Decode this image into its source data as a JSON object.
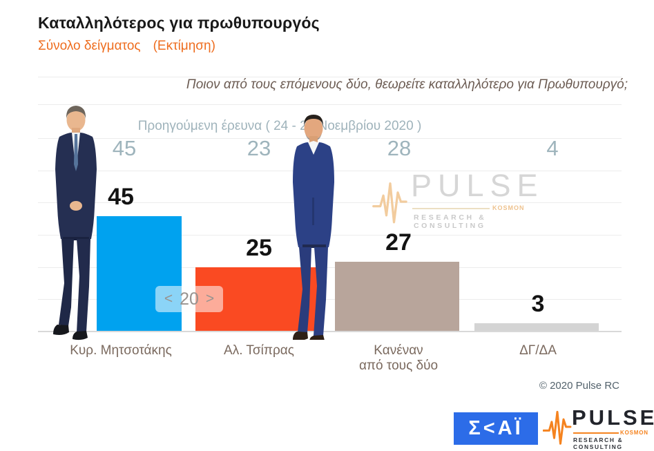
{
  "header": {
    "title": "Καταλληλότερος για πρωθυπουργός",
    "subtitle_sample": "Σύνολο δείγματος",
    "subtitle_estimate": "(Εκτίμηση)"
  },
  "question": "Ποιον από τους επόμενους δύο, θεωρείτε καταλληλότερο για Πρωθυπουργό;",
  "previous_survey_label": "Προηγούμενη έρευνα ( 24 - 26 Νοεμβρίου  2020 )",
  "slide_nav": {
    "prev": "<",
    "page": "20",
    "next": ">"
  },
  "watermark": {
    "brand": "PULSE",
    "badge": "KOSMON",
    "tagline": "RESEARCH & CONSULTING"
  },
  "footer": {
    "copyright": "© 2020 Pulse RC"
  },
  "logos": {
    "skai": "Σ<ΑΪ",
    "pulse_brand": "PULSE",
    "pulse_badge": "KOSMON",
    "pulse_tagline": "RESEARCH & CONSULTING"
  },
  "chart_data": {
    "type": "bar",
    "title": "Καταλληλότερος για πρωθυπουργός",
    "subtitle": "Σύνολο δείγματος (Εκτίμηση)",
    "question": "Ποιον από τους επόμενους δύο, θεωρείτε καταλληλότερο για Πρωθυπουργό;",
    "categories": [
      "Κυρ. Μητσοτάκης",
      "Αλ. Τσίπρας",
      "Κανέναν\nαπό τους δύο",
      "ΔΓ/ΔΑ"
    ],
    "series": [
      {
        "name": "Εκτίμηση",
        "values": [
          45,
          25,
          27,
          3
        ]
      },
      {
        "name": "Προηγούμενη έρευνα ( 24 - 26 Νοεμβρίου 2020 )",
        "values": [
          45,
          23,
          28,
          4
        ]
      }
    ],
    "bar_colors": [
      "#00A2EF",
      "#FA4A22",
      "#B8A59B",
      "#D4D4D4"
    ],
    "ylim": [
      0,
      50
    ],
    "grid": "horizontal",
    "value_labels": "above-bars",
    "previous_values_position": "row-above-chart"
  }
}
